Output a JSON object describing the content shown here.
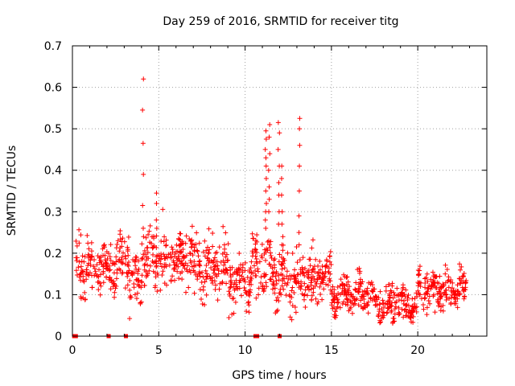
{
  "chart_data": {
    "type": "scatter",
    "title": "Day 259 of 2016, SRMTID for receiver titg",
    "xlabel": "GPS time / hours",
    "ylabel": "SRMTID / TECUs",
    "xlim": [
      0,
      24
    ],
    "ylim": [
      0,
      0.7
    ],
    "xticks": [
      0,
      5,
      10,
      15,
      20
    ],
    "yticks": [
      0,
      0.1,
      0.2,
      0.3,
      0.4,
      0.5,
      0.6,
      0.7
    ],
    "ytick_labels": [
      "0",
      "0.1",
      "0.2",
      "0.3",
      "0.4",
      "0.5",
      "0.6",
      "0.7"
    ],
    "xtick_labels": [
      "0",
      "5",
      "10",
      "15",
      "20"
    ],
    "grid": true,
    "marker": "+",
    "color": "#ff0000",
    "series": [
      {
        "name": "SRMTID",
        "segments": [
          {
            "x0": 0.2,
            "x1": 1.0,
            "base": 0.17,
            "spread": 0.06
          },
          {
            "x0": 1.0,
            "x1": 2.5,
            "base": 0.16,
            "spread": 0.05
          },
          {
            "x0": 2.5,
            "x1": 3.3,
            "base": 0.19,
            "spread": 0.05
          },
          {
            "x0": 3.3,
            "x1": 4.0,
            "base": 0.13,
            "spread": 0.06
          },
          {
            "x0": 4.0,
            "x1": 5.5,
            "base": 0.19,
            "spread": 0.07
          },
          {
            "x0": 5.5,
            "x1": 7.0,
            "base": 0.19,
            "spread": 0.06
          },
          {
            "x0": 7.0,
            "x1": 9.0,
            "base": 0.16,
            "spread": 0.06
          },
          {
            "x0": 9.0,
            "x1": 10.3,
            "base": 0.13,
            "spread": 0.06
          },
          {
            "x0": 10.3,
            "x1": 11.5,
            "base": 0.17,
            "spread": 0.07
          },
          {
            "x0": 11.5,
            "x1": 13.5,
            "base": 0.14,
            "spread": 0.06
          },
          {
            "x0": 13.5,
            "x1": 15.0,
            "base": 0.14,
            "spread": 0.05
          },
          {
            "x0": 15.0,
            "x1": 17.5,
            "base": 0.1,
            "spread": 0.04
          },
          {
            "x0": 17.5,
            "x1": 19.5,
            "base": 0.08,
            "spread": 0.04
          },
          {
            "x0": 19.5,
            "x1": 20.0,
            "base": 0.07,
            "spread": 0.03
          },
          {
            "x0": 20.0,
            "x1": 22.8,
            "base": 0.11,
            "spread": 0.04
          }
        ],
        "spikes": [
          {
            "x": 4.1,
            "y": [
              0.62,
              0.545,
              0.465,
              0.39,
              0.315,
              0.26,
              0.24
            ]
          },
          {
            "x": 4.85,
            "y": [
              0.345,
              0.32,
              0.28,
              0.26
            ]
          },
          {
            "x": 11.2,
            "y": [
              0.495,
              0.475,
              0.45,
              0.43,
              0.41,
              0.38,
              0.35,
              0.32,
              0.3,
              0.28,
              0.26
            ]
          },
          {
            "x": 11.4,
            "y": [
              0.51,
              0.48,
              0.44,
              0.4,
              0.36,
              0.33,
              0.3
            ]
          },
          {
            "x": 11.95,
            "y": [
              0.515,
              0.49,
              0.45,
              0.41,
              0.37,
              0.34,
              0.3,
              0.27
            ]
          },
          {
            "x": 12.15,
            "y": [
              0.41,
              0.38,
              0.34,
              0.3,
              0.27,
              0.24,
              0.22
            ]
          },
          {
            "x": 13.15,
            "y": [
              0.525,
              0.5,
              0.46,
              0.41,
              0.35,
              0.29,
              0.25,
              0.22
            ]
          }
        ],
        "zero_markers": [
          0.1,
          0.2,
          2.1,
          3.1,
          10.6,
          10.7,
          12.0
        ]
      }
    ]
  }
}
